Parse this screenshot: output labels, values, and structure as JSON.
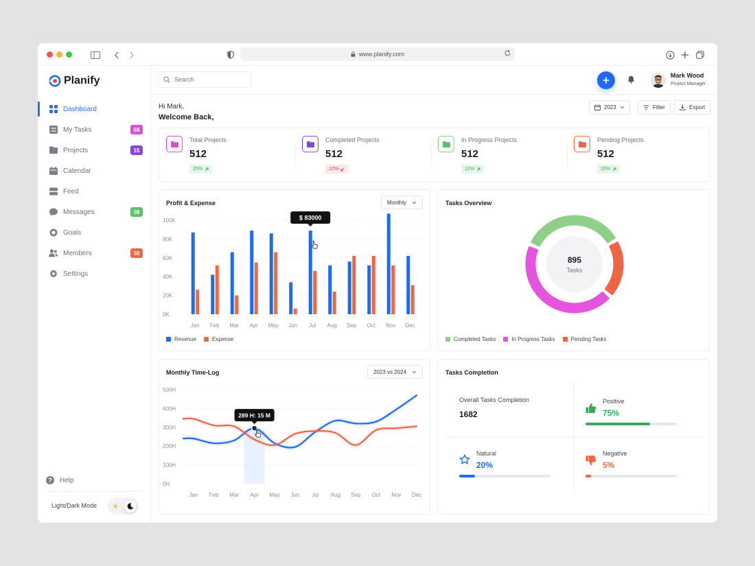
{
  "browser": {
    "url": "www.planify.com"
  },
  "app": {
    "name": "Planify"
  },
  "sidebar": {
    "items": [
      {
        "label": "Dashboard",
        "icon": "grid-icon",
        "badge": "",
        "badge_color": ""
      },
      {
        "label": "My Tasks",
        "icon": "tasks-icon",
        "badge": "68",
        "badge_color": "#d94fd6"
      },
      {
        "label": "Projects",
        "icon": "folder-icon",
        "badge": "15",
        "badge_color": "#8a45d8"
      },
      {
        "label": "Calendar",
        "icon": "calendar-icon",
        "badge": "",
        "badge_color": ""
      },
      {
        "label": "Feed",
        "icon": "feed-icon",
        "badge": "",
        "badge_color": ""
      },
      {
        "label": "Messages",
        "icon": "message-icon",
        "badge": "08",
        "badge_color": "#5cbf6a"
      },
      {
        "label": "Goals",
        "icon": "target-icon",
        "badge": "",
        "badge_color": ""
      },
      {
        "label": "Members",
        "icon": "users-icon",
        "badge": "50",
        "badge_color": "#f06543"
      },
      {
        "label": "Settings",
        "icon": "gear-icon",
        "badge": "",
        "badge_color": ""
      }
    ],
    "help": "Help",
    "mode_label": "Light/Dark Mode"
  },
  "header": {
    "search_placeholder": "Search",
    "user_name": "Mark Wood",
    "user_role": "Project Manager"
  },
  "greeting": {
    "hi": "Hi Mark,",
    "welcome": "Welcome Back,"
  },
  "toolbar": {
    "year": "2023",
    "filter": "Filter",
    "export": "Export"
  },
  "stats": [
    {
      "label": "Total Projects",
      "value": "512",
      "change": "25%",
      "trend": "up",
      "color": "#d94fd6",
      "badge_bg": "#e6f7ea",
      "badge_color": "#3aa85a"
    },
    {
      "label": "Completed Projects",
      "value": "512",
      "change": "12%",
      "trend": "down",
      "color": "#8a45d8",
      "badge_bg": "#fde7e9",
      "badge_color": "#e0434f"
    },
    {
      "label": "In Progress Projects",
      "value": "512",
      "change": "12%",
      "trend": "up",
      "color": "#5cbf6a",
      "badge_bg": "#e6f7ea",
      "badge_color": "#3aa85a"
    },
    {
      "label": "Pending Projects",
      "value": "512",
      "change": "20%",
      "trend": "up",
      "color": "#f06543",
      "badge_bg": "#e6f7ea",
      "badge_color": "#3aa85a"
    }
  ],
  "profit_expense": {
    "title": "Profit & Expense",
    "period": "Monthly",
    "tooltip": "$ 83000"
  },
  "tasks_overview": {
    "title": "Tasks Overview",
    "center_value": "895",
    "center_label": "Tasks"
  },
  "time_log": {
    "title": "Monthly Time-Log",
    "period": "2023 vs 2024",
    "tooltip": "289 H: 15 M"
  },
  "tasks_completion": {
    "title": "Tasks Completion",
    "overall_label": "Overall Tasks Completion",
    "overall_value": "1682",
    "positive_label": "Positive",
    "positive_value": "75%",
    "natural_label": "Natural",
    "natural_value": "20%",
    "negative_label": "Negative",
    "negative_value": "5%"
  },
  "chart_data": [
    {
      "type": "bar",
      "title": "Profit & Expense",
      "categories": [
        "Jan",
        "Feb",
        "Mar",
        "Apr",
        "May",
        "Jun",
        "Jul",
        "Aug",
        "Sep",
        "Oct",
        "Nov",
        "Dec"
      ],
      "series": [
        {
          "name": "Revenue",
          "color": "#1f6bf0",
          "values": [
            87000,
            42000,
            66000,
            89000,
            86000,
            34000,
            89000,
            52000,
            56000,
            52000,
            107000,
            62000
          ]
        },
        {
          "name": "Expense",
          "color": "#f06543",
          "values": [
            26000,
            52000,
            20000,
            55000,
            66000,
            6000,
            46000,
            24000,
            62000,
            62000,
            52000,
            31000
          ]
        }
      ],
      "yticks": [
        "0K",
        "20K",
        "40K",
        "60K",
        "80K",
        "100K"
      ],
      "ylim": [
        0,
        100000
      ],
      "legend": "bottom-left"
    },
    {
      "type": "pie",
      "title": "Tasks Overview",
      "series": [
        {
          "name": "Completed Tasks",
          "color": "#8fcf8a",
          "value": 35
        },
        {
          "name": "In Progress Tasks",
          "color": "#e653dd",
          "value": 45
        },
        {
          "name": "Pending Tasks",
          "color": "#f06543",
          "value": 20
        }
      ],
      "legend": "bottom-left"
    },
    {
      "type": "line",
      "title": "Monthly Time-Log",
      "categories": [
        "Jan",
        "Feb",
        "Mar",
        "Apr",
        "May",
        "Jun",
        "Jul",
        "Aug",
        "Sep",
        "Oct",
        "Nov",
        "Dec"
      ],
      "series": [
        {
          "color": "#1f6bf0",
          "values": [
            240,
            215,
            230,
            295,
            215,
            195,
            275,
            335,
            320,
            330,
            395,
            470
          ]
        },
        {
          "color": "#f06543",
          "values": [
            345,
            310,
            305,
            235,
            205,
            265,
            280,
            270,
            205,
            285,
            295,
            305
          ]
        }
      ],
      "yticks": [
        "0H",
        "100H",
        "200H",
        "300H",
        "400H",
        "500H"
      ],
      "ylim": [
        0,
        500
      ],
      "highlight_category": "Apr"
    }
  ]
}
